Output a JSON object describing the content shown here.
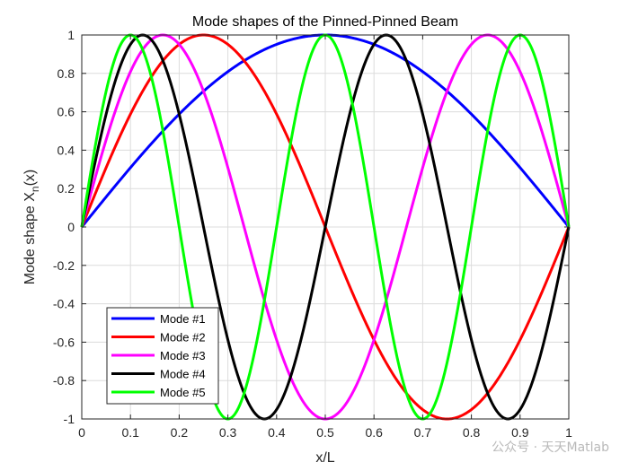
{
  "chart_data": {
    "type": "line",
    "title": "Mode shapes of the Pinned-Pinned Beam",
    "xlabel": "x/L",
    "ylabel_main": "Mode shape X",
    "ylabel_sub": "n",
    "ylabel_tail": "(x)",
    "xlim": [
      0,
      1
    ],
    "ylim": [
      -1,
      1
    ],
    "grid": true,
    "legend_position": "bottom-left",
    "x_ticks": [
      "0",
      "0.1",
      "0.2",
      "0.3",
      "0.4",
      "0.5",
      "0.6",
      "0.7",
      "0.8",
      "0.9",
      "1"
    ],
    "y_ticks": [
      "-1",
      "-0.8",
      "-0.6",
      "-0.4",
      "-0.2",
      "0",
      "0.2",
      "0.4",
      "0.6",
      "0.8",
      "1"
    ],
    "series": [
      {
        "name": "Mode #1",
        "n": 1,
        "color": "#0000ff",
        "function": "sin(n*pi*x)"
      },
      {
        "name": "Mode #2",
        "n": 2,
        "color": "#ff0000",
        "function": "sin(n*pi*x)"
      },
      {
        "name": "Mode #3",
        "n": 3,
        "color": "#ff00ff",
        "function": "sin(n*pi*x)"
      },
      {
        "name": "Mode #4",
        "n": 4,
        "color": "#000000",
        "function": "sin(n*pi*x)"
      },
      {
        "name": "Mode #5",
        "n": 5,
        "color": "#00ff00",
        "function": "sin(n*pi*x)"
      }
    ]
  },
  "watermark": "公众号 · 天天Matlab"
}
